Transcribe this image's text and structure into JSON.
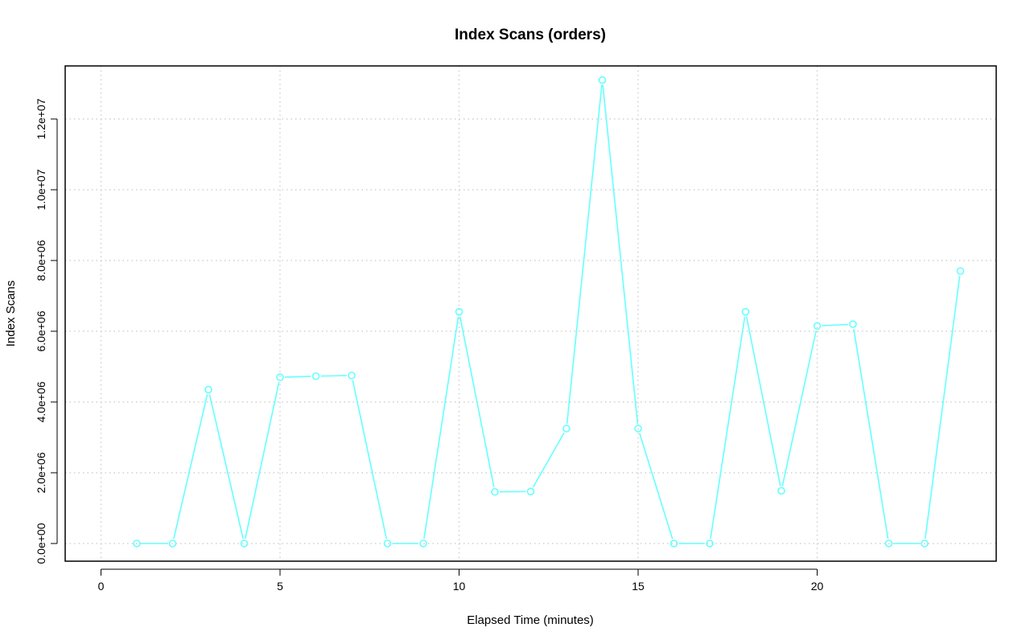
{
  "chart_data": {
    "type": "line",
    "title": "Index Scans (orders)",
    "xlabel": "Elapsed Time (minutes)",
    "ylabel": "Index Scans",
    "xlim": [
      -1,
      25
    ],
    "ylim": [
      -500000,
      13500000
    ],
    "x_ticks": [
      0,
      5,
      10,
      15,
      20
    ],
    "x_tick_labels": [
      "0",
      "5",
      "10",
      "15",
      "20"
    ],
    "y_ticks": [
      0,
      2000000,
      4000000,
      6000000,
      8000000,
      10000000,
      12000000
    ],
    "y_tick_labels": [
      "0.0e+00",
      "2.0e+06",
      "4.0e+06",
      "6.0e+06",
      "8.0e+06",
      "1.0e+07",
      "1.2e+07"
    ],
    "grid": true,
    "series": [
      {
        "color": "#66ffff",
        "marker": "open-circle",
        "x": [
          1,
          2,
          3,
          4,
          5,
          6,
          7,
          8,
          9,
          10,
          11,
          12,
          13,
          14,
          15,
          16,
          17,
          18,
          19,
          20,
          21,
          22,
          23,
          24
        ],
        "values": [
          0,
          0,
          4350000,
          0,
          4700000,
          4730000,
          4750000,
          0,
          0,
          6550000,
          1460000,
          1470000,
          3250000,
          13100000,
          3250000,
          0,
          0,
          6550000,
          1490000,
          6150000,
          6200000,
          0,
          0,
          7700000
        ]
      }
    ]
  }
}
